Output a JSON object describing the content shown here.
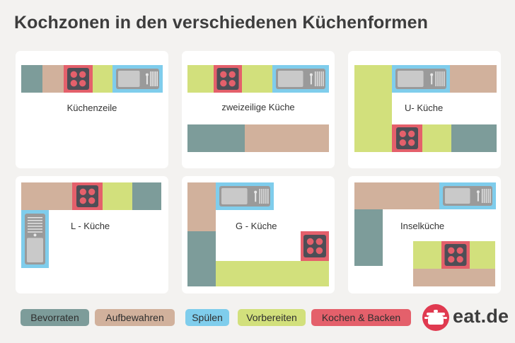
{
  "title": "Kochzonen in den verschiedenen Küchenformen",
  "colors": {
    "bevorraten": "#7d9c9a",
    "aufbewahren": "#d1b19c",
    "spuelen": "#7fcdec",
    "vorbereiten": "#d2e07c",
    "kochen": "#e4606b",
    "background": "#f3f2f0",
    "card": "#ffffff"
  },
  "layouts": [
    {
      "label": "Küchenzeile"
    },
    {
      "label": "zweizeilige Küche"
    },
    {
      "label": "U- Küche"
    },
    {
      "label": "L - Küche"
    },
    {
      "label": "G - Küche"
    },
    {
      "label": "Inselküche"
    }
  ],
  "legend": [
    {
      "label": "Bevorraten",
      "color": "#7d9c9a"
    },
    {
      "label": "Aufbewahren",
      "color": "#d1b19c"
    },
    {
      "label": "Spülen",
      "color": "#7fcdec"
    },
    {
      "label": "Vorbereiten",
      "color": "#d2e07c"
    },
    {
      "label": "Kochen & Backen",
      "color": "#e4606b"
    }
  ],
  "brand": {
    "name": "eat.de",
    "icon": "cooking-pot-icon"
  }
}
